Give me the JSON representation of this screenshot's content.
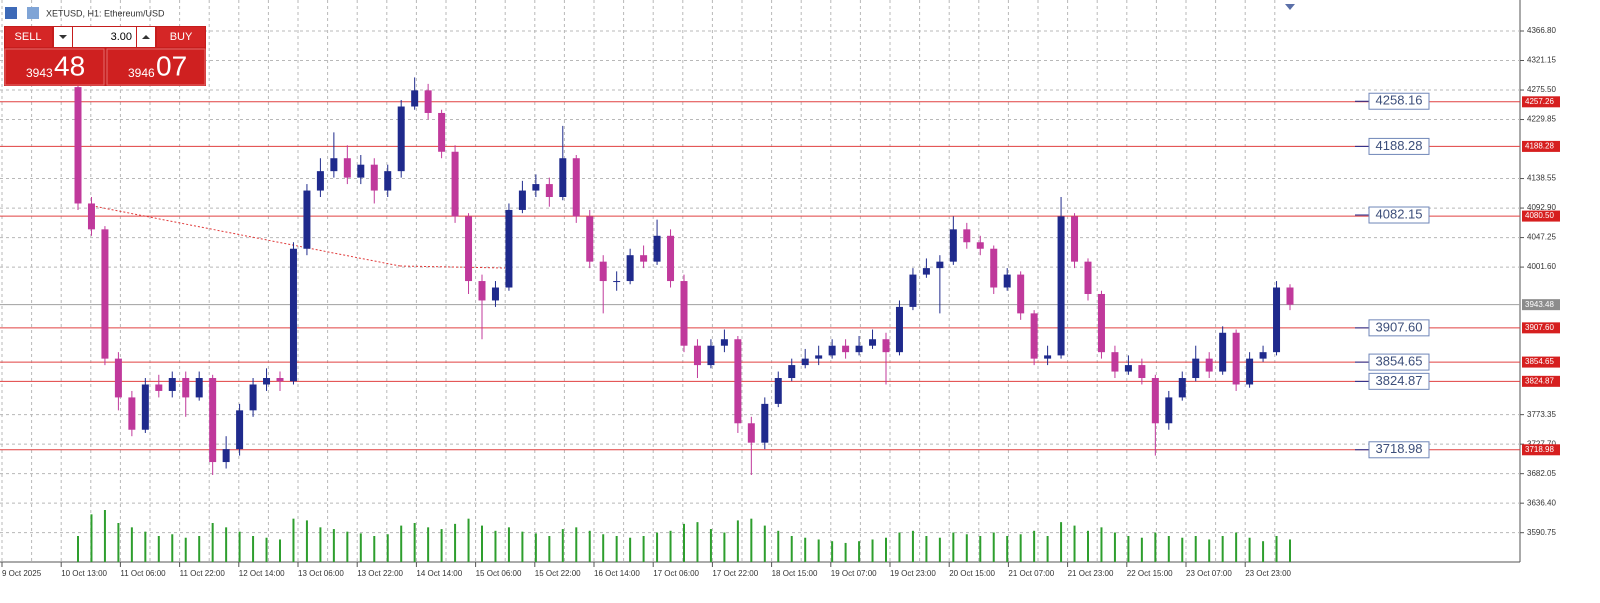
{
  "header": {
    "title": "XETUSD, H1:  Ethereum/USD"
  },
  "trade_panel": {
    "sell": "SELL",
    "buy": "BUY",
    "volume": "3.00",
    "sell_price": {
      "small": "3943",
      "big": "48"
    },
    "buy_price": {
      "small": "3946",
      "big": "07"
    }
  },
  "chart_data": {
    "type": "candlestick",
    "bull_color": "#1f2a8c",
    "bear_color": "#c0399b",
    "volume_color": "#2e9e2e",
    "grid": true,
    "ylim": [
      3548.5,
      4414.75
    ],
    "yticks": [
      {
        "value": 4366.8,
        "label": "4366.80"
      },
      {
        "value": 4321.15,
        "label": "4321.15"
      },
      {
        "value": 4275.5,
        "label": "4275.50"
      },
      {
        "value": 4229.85,
        "label": "4229.85"
      },
      {
        "value": 4138.55,
        "label": "4138.55"
      },
      {
        "value": 4092.9,
        "label": "4092.90"
      },
      {
        "value": 4047.25,
        "label": "4047.25"
      },
      {
        "value": 4001.6,
        "label": "4001.60"
      },
      {
        "value": 3773.35,
        "label": "3773.35"
      },
      {
        "value": 3727.7,
        "label": "3727.70"
      },
      {
        "value": 3682.05,
        "label": "3682.05"
      },
      {
        "value": 3636.4,
        "label": "3636.40"
      },
      {
        "value": 3590.75,
        "label": "3590.75"
      }
    ],
    "xtick_labels": [
      "9 Oct 2025",
      "10 Oct 13:00",
      "11 Oct 06:00",
      "11 Oct 22:00",
      "12 Oct 14:00",
      "13 Oct 06:00",
      "13 Oct 22:00",
      "14 Oct 14:00",
      "15 Oct 06:00",
      "15 Oct 22:00",
      "16 Oct 14:00",
      "17 Oct 06:00",
      "17 Oct 22:00",
      "18 Oct 15:00",
      "19 Oct 07:00",
      "19 Oct 23:00",
      "20 Oct 15:00",
      "21 Oct 07:00",
      "21 Oct 23:00",
      "22 Oct 15:00",
      "23 Oct 07:00",
      "23 Oct 23:00"
    ],
    "open": [
      4280,
      4100,
      4060,
      3860,
      3800,
      3750,
      3820,
      3810,
      3830,
      3800,
      3830,
      3700,
      3720,
      3780,
      3820,
      3830,
      3825,
      4030,
      4120,
      4150,
      4170,
      4140,
      4160,
      4120,
      4150,
      4250,
      4275,
      4240,
      4180,
      4080,
      3980,
      3950,
      3970,
      4090,
      4120,
      4130,
      4110,
      4170,
      4080,
      4010,
      3980,
      3980,
      4020,
      4010,
      4050,
      3980,
      3880,
      3850,
      3880,
      3890,
      3760,
      3730,
      3790,
      3830,
      3850,
      3860,
      3865,
      3880,
      3870,
      3880,
      3890,
      3870,
      3940,
      3990,
      4000,
      4010,
      4060,
      4040,
      4030,
      3970,
      3990,
      3930,
      3860,
      3865,
      4080,
      4010,
      3960,
      3870,
      3840,
      3850,
      3830,
      3760,
      3800,
      3830,
      3860,
      3840,
      3900,
      3820,
      3860,
      3870,
      3970
    ],
    "high": [
      4285,
      4110,
      4065,
      3870,
      3810,
      3830,
      3835,
      3840,
      3840,
      3840,
      3835,
      3740,
      3790,
      3830,
      3845,
      3840,
      4040,
      4130,
      4170,
      4210,
      4190,
      4175,
      4170,
      4160,
      4260,
      4295,
      4285,
      4245,
      4190,
      4085,
      3990,
      3980,
      4100,
      4135,
      4145,
      4140,
      4220,
      4175,
      4090,
      4020,
      3995,
      4030,
      4035,
      4075,
      4060,
      3990,
      3890,
      3890,
      3905,
      3895,
      3770,
      3800,
      3840,
      3860,
      3875,
      3880,
      3890,
      3890,
      3895,
      3905,
      3900,
      3950,
      4000,
      4015,
      4020,
      4080,
      4070,
      4050,
      4035,
      4000,
      3995,
      3935,
      3880,
      4110,
      4085,
      4015,
      3965,
      3880,
      3865,
      3860,
      3835,
      3810,
      3840,
      3880,
      3870,
      3910,
      3905,
      3870,
      3880,
      3980,
      3975
    ],
    "low": [
      4090,
      4050,
      3850,
      3780,
      3740,
      3745,
      3800,
      3800,
      3770,
      3795,
      3680,
      3690,
      3710,
      3770,
      3810,
      3810,
      3820,
      4020,
      4110,
      4140,
      4130,
      4130,
      4100,
      4110,
      4140,
      4245,
      4230,
      4170,
      4070,
      3960,
      3890,
      3940,
      3965,
      4085,
      4110,
      4095,
      4105,
      4070,
      4000,
      3930,
      3965,
      3975,
      4000,
      4005,
      3970,
      3870,
      3830,
      3845,
      3870,
      3745,
      3680,
      3720,
      3785,
      3825,
      3845,
      3850,
      3860,
      3860,
      3865,
      3875,
      3820,
      3865,
      3935,
      3985,
      3930,
      4005,
      4030,
      4020,
      3960,
      3965,
      3920,
      3850,
      3850,
      3860,
      4000,
      3950,
      3860,
      3830,
      3835,
      3820,
      3710,
      3750,
      3795,
      3825,
      3830,
      3835,
      3810,
      3815,
      3855,
      3865,
      3935
    ],
    "close": [
      4100,
      4060,
      3860,
      3800,
      3750,
      3820,
      3810,
      3830,
      3800,
      3830,
      3700,
      3720,
      3780,
      3820,
      3830,
      3825,
      4030,
      4120,
      4150,
      4170,
      4140,
      4160,
      4120,
      4150,
      4250,
      4275,
      4240,
      4180,
      4080,
      3980,
      3950,
      3970,
      4090,
      4120,
      4130,
      4110,
      4170,
      4080,
      4010,
      3980,
      3980,
      4020,
      4010,
      4050,
      3980,
      3880,
      3850,
      3880,
      3890,
      3760,
      3730,
      3790,
      3830,
      3850,
      3860,
      3865,
      3880,
      3870,
      3880,
      3890,
      3870,
      3940,
      3990,
      4000,
      4010,
      4060,
      4040,
      4030,
      3970,
      3990,
      3930,
      3860,
      3865,
      4080,
      4010,
      3960,
      3870,
      3840,
      3850,
      3830,
      3760,
      3800,
      3830,
      3860,
      3840,
      3900,
      3820,
      3860,
      3870,
      3970,
      3943.48
    ],
    "volume": [
      30,
      55,
      60,
      45,
      40,
      35,
      30,
      32,
      28,
      30,
      45,
      40,
      35,
      30,
      28,
      26,
      50,
      48,
      40,
      38,
      35,
      33,
      30,
      32,
      42,
      45,
      40,
      38,
      44,
      50,
      42,
      36,
      40,
      35,
      33,
      30,
      38,
      40,
      36,
      32,
      30,
      28,
      30,
      34,
      36,
      44,
      46,
      38,
      34,
      48,
      50,
      42,
      36,
      30,
      28,
      26,
      24,
      22,
      24,
      26,
      28,
      34,
      36,
      30,
      28,
      34,
      32,
      30,
      34,
      30,
      32,
      36,
      30,
      46,
      42,
      36,
      40,
      34,
      30,
      28,
      34,
      30,
      28,
      30,
      26,
      30,
      34,
      28,
      24,
      30,
      26
    ],
    "price_lines": [
      {
        "value": 4257.26,
        "label": "4257.26"
      },
      {
        "value": 4188.28,
        "label": "4188.28"
      },
      {
        "value": 4080.5,
        "label": "4080.50"
      },
      {
        "value": 3907.6,
        "label": "3907.60"
      },
      {
        "value": 3854.65,
        "label": "3854.65"
      },
      {
        "value": 3824.87,
        "label": "3824.87"
      },
      {
        "value": 3718.98,
        "label": "3718.98"
      }
    ],
    "level_labels": [
      {
        "value": 4258.16,
        "label": "4258.16"
      },
      {
        "value": 4188.28,
        "label": "4188.28"
      },
      {
        "value": 4082.15,
        "label": "4082.15"
      },
      {
        "value": 3907.6,
        "label": "3907.60"
      },
      {
        "value": 3854.65,
        "label": "3854.65"
      },
      {
        "value": 3824.87,
        "label": "3824.87"
      },
      {
        "value": 3718.98,
        "label": "3718.98"
      }
    ],
    "current_price": {
      "value": 3943.48,
      "label": "3943.48"
    }
  }
}
